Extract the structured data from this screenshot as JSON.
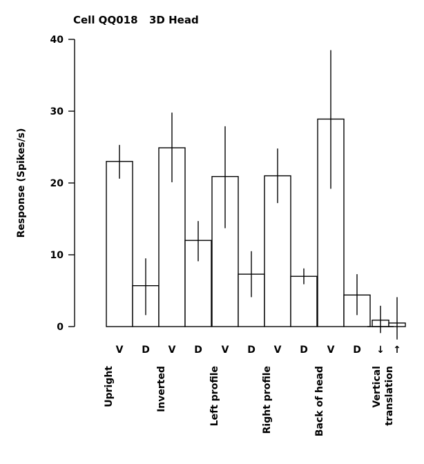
{
  "chart_data": {
    "type": "bar",
    "title_left": "Cell QQ018",
    "title_right": "3D Head",
    "ylabel": "Response (Spikes/s)",
    "ylim": [
      0,
      40
    ],
    "yticks": [
      "0",
      "10",
      "20",
      "30",
      "40"
    ],
    "groups": [
      {
        "name": "Upright",
        "bars": [
          {
            "label": "V",
            "value": 23,
            "err_low": 20.6,
            "err_high": 25.3
          },
          {
            "label": "D",
            "value": 5.7,
            "err_low": 1.6,
            "err_high": 9.5
          }
        ]
      },
      {
        "name": "Inverted",
        "bars": [
          {
            "label": "V",
            "value": 24.9,
            "err_low": 20.1,
            "err_high": 29.8
          },
          {
            "label": "D",
            "value": 12,
            "err_low": 9.1,
            "err_high": 14.7
          }
        ]
      },
      {
        "name": "Left profile",
        "bars": [
          {
            "label": "V",
            "value": 20.9,
            "err_low": 13.7,
            "err_high": 27.9
          },
          {
            "label": "D",
            "value": 7.3,
            "err_low": 4.1,
            "err_high": 10.5
          }
        ]
      },
      {
        "name": "Right profile",
        "bars": [
          {
            "label": "V",
            "value": 21,
            "err_low": 17.2,
            "err_high": 24.8
          },
          {
            "label": "D",
            "value": 7,
            "err_low": 5.9,
            "err_high": 8.1
          }
        ]
      },
      {
        "name": "Back of head",
        "bars": [
          {
            "label": "V",
            "value": 28.9,
            "err_low": 19.2,
            "err_high": 38.5
          },
          {
            "label": "D",
            "value": 4.4,
            "err_low": 1.6,
            "err_high": 7.3
          }
        ]
      },
      {
        "name_lines": [
          "Vertical",
          "translation"
        ],
        "bars": [
          {
            "label": "↓",
            "value": 0.9,
            "err_low": -0.9,
            "err_high": 2.9
          },
          {
            "label": "↑",
            "value": 0.5,
            "err_low": -1.8,
            "err_high": 4.1
          }
        ]
      }
    ]
  }
}
